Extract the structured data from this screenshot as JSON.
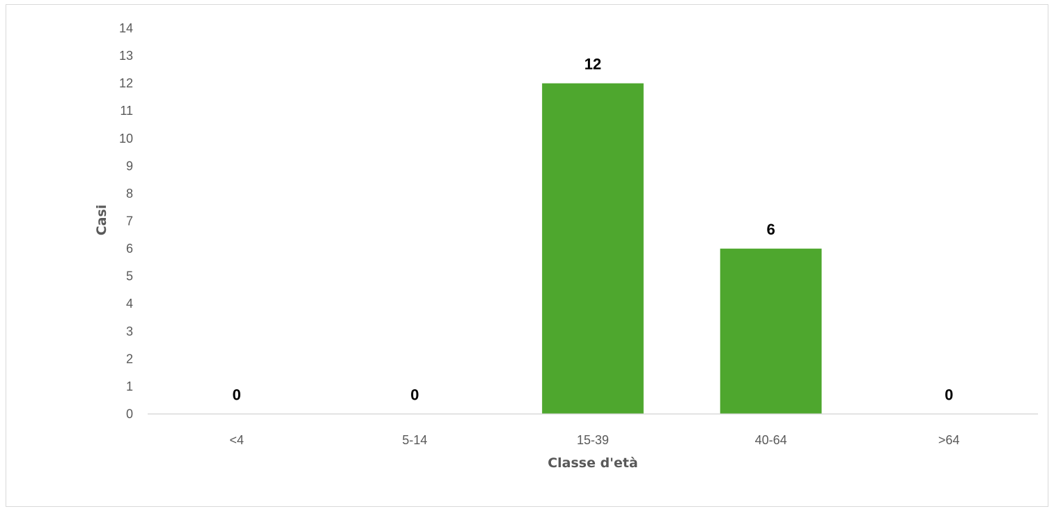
{
  "chart_data": {
    "type": "bar",
    "categories": [
      "<4",
      "5-14",
      "15-39",
      "40-64",
      ">64"
    ],
    "values": [
      0,
      0,
      12,
      6,
      0
    ],
    "data_labels": [
      "0",
      "0",
      "12",
      "6",
      "0"
    ],
    "title": "",
    "xlabel": "Classe d'età",
    "ylabel": "Casi",
    "ylim": [
      0,
      14
    ],
    "yticks": [
      "0",
      "1",
      "2",
      "3",
      "4",
      "5",
      "6",
      "7",
      "8",
      "9",
      "10",
      "11",
      "12",
      "13",
      "14"
    ],
    "grid": false,
    "legend": "none",
    "bar_color": "#4ea72e"
  }
}
